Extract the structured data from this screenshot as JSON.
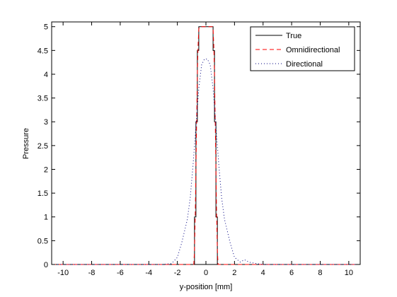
{
  "chart_data": {
    "type": "line",
    "title": "",
    "xlabel": "y-position [mm]",
    "ylabel": "Pressure",
    "xlim": [
      -10.8,
      10.8
    ],
    "ylim": [
      0,
      5.1
    ],
    "xticks": [
      -10,
      -8,
      -6,
      -4,
      -2,
      0,
      2,
      4,
      6,
      8,
      10
    ],
    "yticks": [
      0,
      0.5,
      1,
      1.5,
      2,
      2.5,
      3,
      3.5,
      4,
      4.5,
      5
    ],
    "grid": false,
    "legend": {
      "placement": "top-right",
      "entries": [
        "True",
        "Omnidirectional",
        "Directional"
      ]
    },
    "series": [
      {
        "name": "True",
        "color": "#000000",
        "style": "solid",
        "x": [
          -10.8,
          -0.8,
          -0.8,
          -0.7,
          -0.7,
          -0.6,
          -0.6,
          -0.5,
          -0.5,
          0.5,
          0.5,
          0.6,
          0.6,
          0.7,
          0.7,
          0.8,
          0.8,
          10.8
        ],
        "y": [
          0,
          0,
          1.0,
          1.0,
          3.0,
          3.0,
          4.5,
          4.5,
          5.0,
          5.0,
          4.5,
          4.5,
          3.0,
          3.0,
          1.0,
          1.0,
          0,
          0
        ]
      },
      {
        "name": "Omnidirectional",
        "color": "#ff0000",
        "style": "dashed",
        "x": [
          -10.8,
          -0.85,
          -0.8,
          -0.75,
          -0.7,
          -0.65,
          -0.6,
          -0.55,
          -0.5,
          -0.45,
          0.45,
          0.5,
          0.55,
          0.6,
          0.65,
          0.7,
          0.75,
          0.8,
          0.85,
          10.8
        ],
        "y": [
          0,
          0,
          0.3,
          1.0,
          2.0,
          3.0,
          4.0,
          4.6,
          4.95,
          5.0,
          5.0,
          4.95,
          4.6,
          4.0,
          3.0,
          2.0,
          1.0,
          0.3,
          0,
          0
        ]
      },
      {
        "name": "Directional",
        "color": "#000080",
        "style": "dotted",
        "x": [
          -10.8,
          -3.0,
          -2.4,
          -2.0,
          -1.7,
          -1.5,
          -1.3,
          -1.1,
          -0.9,
          -0.7,
          -0.5,
          -0.3,
          -0.1,
          0.0,
          0.1,
          0.3,
          0.5,
          0.7,
          0.9,
          1.1,
          1.3,
          1.5,
          1.7,
          2.0,
          2.4,
          2.7,
          3.0,
          3.5,
          4.0,
          10.8
        ],
        "y": [
          0,
          0,
          0.02,
          0.15,
          0.45,
          0.7,
          0.95,
          1.4,
          2.1,
          2.9,
          3.7,
          4.2,
          4.32,
          4.32,
          4.32,
          4.2,
          3.7,
          2.9,
          2.1,
          1.4,
          0.95,
          0.7,
          0.45,
          0.15,
          0.05,
          0.1,
          0.05,
          0.02,
          0,
          0
        ]
      }
    ]
  }
}
